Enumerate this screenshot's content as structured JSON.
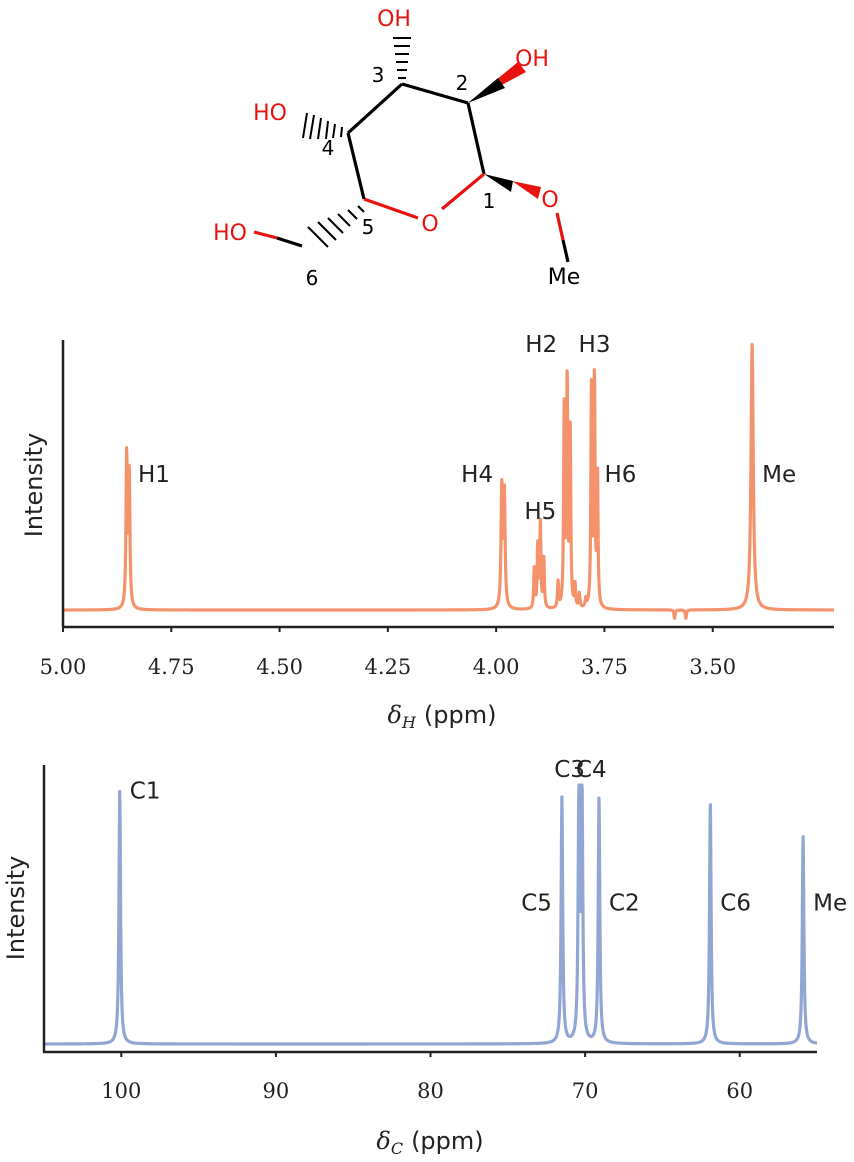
{
  "molecule": {
    "atoms": {
      "oh3": "OH",
      "oh2": "OH",
      "oh4": "HO",
      "oh6": "HO",
      "ring_o": "O",
      "o1": "O",
      "me": "Me"
    },
    "positions": [
      "1",
      "2",
      "3",
      "4",
      "5",
      "6"
    ],
    "colors": {
      "heteroatom": "#e8130f",
      "bond": "#000000"
    }
  },
  "chart_data": [
    {
      "type": "line",
      "ylabel": "Intensity",
      "xlabel_symbol": "δ",
      "xlabel_subscript": "H",
      "xlabel_unit": "(ppm)",
      "xlim": [
        5.0,
        3.22
      ],
      "x_reversed": true,
      "ylim": [
        0,
        1
      ],
      "xticks": [
        5.0,
        4.75,
        4.5,
        4.25,
        4.0,
        3.75,
        3.5
      ],
      "xtick_labels": [
        "5.00",
        "4.75",
        "4.50",
        "4.25",
        "4.00",
        "3.75",
        "3.50"
      ],
      "color": "#f4926b",
      "baseline": 0.06,
      "peaks": [
        {
          "x": 4.853,
          "h": 0.6,
          "w": 0.0018
        },
        {
          "x": 4.847,
          "h": 0.53,
          "w": 0.0018
        },
        {
          "x": 3.987,
          "h": 0.48,
          "w": 0.002
        },
        {
          "x": 3.981,
          "h": 0.46,
          "w": 0.002
        },
        {
          "x": 3.912,
          "h": 0.2,
          "w": 0.0015
        },
        {
          "x": 3.904,
          "h": 0.28,
          "w": 0.0015
        },
        {
          "x": 3.898,
          "h": 0.36,
          "w": 0.0015
        },
        {
          "x": 3.89,
          "h": 0.24,
          "w": 0.0015
        },
        {
          "x": 3.857,
          "h": 0.15,
          "w": 0.0015
        },
        {
          "x": 3.843,
          "h": 0.76,
          "w": 0.0015
        },
        {
          "x": 3.836,
          "h": 0.88,
          "w": 0.0015
        },
        {
          "x": 3.829,
          "h": 0.68,
          "w": 0.0015
        },
        {
          "x": 3.818,
          "h": 0.14,
          "w": 0.0015
        },
        {
          "x": 3.808,
          "h": 0.11,
          "w": 0.0015
        },
        {
          "x": 3.793,
          "h": 0.09,
          "w": 0.0015
        },
        {
          "x": 3.78,
          "h": 0.83,
          "w": 0.0015
        },
        {
          "x": 3.773,
          "h": 0.88,
          "w": 0.0015
        },
        {
          "x": 3.766,
          "h": 0.52,
          "w": 0.0015
        },
        {
          "x": 3.588,
          "h": 0.03,
          "w": 0.0015
        },
        {
          "x": 3.562,
          "h": 0.03,
          "w": 0.0015
        },
        {
          "x": 3.409,
          "h": 1.0,
          "w": 0.003
        },
        {
          "x": 3.225,
          "h": 0.06,
          "w": 0.0015
        }
      ],
      "annotations": [
        {
          "text": "H1",
          "x": 4.85,
          "y": 0.54,
          "align": "left"
        },
        {
          "text": "H4",
          "x": 3.984,
          "y": 0.54,
          "align": "right"
        },
        {
          "text": "H5",
          "x": 3.898,
          "y": 0.41,
          "align": "center"
        },
        {
          "text": "H2",
          "x": 3.836,
          "y": 1.0,
          "align": "right"
        },
        {
          "text": "H3",
          "x": 3.773,
          "y": 1.0,
          "align": "center"
        },
        {
          "text": "H6",
          "x": 3.773,
          "y": 0.54,
          "align": "left"
        },
        {
          "text": "Me",
          "x": 3.409,
          "y": 0.54,
          "align": "left"
        }
      ]
    },
    {
      "type": "line",
      "ylabel": "Intensity",
      "xlabel_symbol": "δ",
      "xlabel_subscript": "C",
      "xlabel_unit": "(ppm)",
      "xlim": [
        105,
        55
      ],
      "x_reversed": true,
      "ylim": [
        0,
        1
      ],
      "xticks": [
        100,
        90,
        80,
        70,
        60
      ],
      "xtick_labels": [
        "100",
        "90",
        "80",
        "70",
        "60"
      ],
      "color": "#92a6d3",
      "baseline": 0.03,
      "peaks": [
        {
          "x": 100.1,
          "h": 0.98,
          "w": 0.06
        },
        {
          "x": 71.5,
          "h": 0.95,
          "w": 0.06
        },
        {
          "x": 70.4,
          "h": 0.95,
          "w": 0.06
        },
        {
          "x": 70.2,
          "h": 0.95,
          "w": 0.06
        },
        {
          "x": 69.1,
          "h": 0.95,
          "w": 0.06
        },
        {
          "x": 61.9,
          "h": 0.93,
          "w": 0.06
        },
        {
          "x": 55.9,
          "h": 0.81,
          "w": 0.06
        }
      ],
      "annotations": [
        {
          "text": "C1",
          "x": 100.1,
          "y": 0.98,
          "align": "left"
        },
        {
          "text": "C3",
          "x": 71.0,
          "y": 1.06,
          "align": "center"
        },
        {
          "text": "C4",
          "x": 69.6,
          "y": 1.06,
          "align": "center"
        },
        {
          "text": "C5",
          "x": 71.5,
          "y": 0.56,
          "align": "right"
        },
        {
          "text": "C2",
          "x": 69.1,
          "y": 0.56,
          "align": "left"
        },
        {
          "text": "C6",
          "x": 61.9,
          "y": 0.56,
          "align": "left"
        },
        {
          "text": "Me",
          "x": 55.9,
          "y": 0.56,
          "align": "left"
        }
      ]
    }
  ]
}
